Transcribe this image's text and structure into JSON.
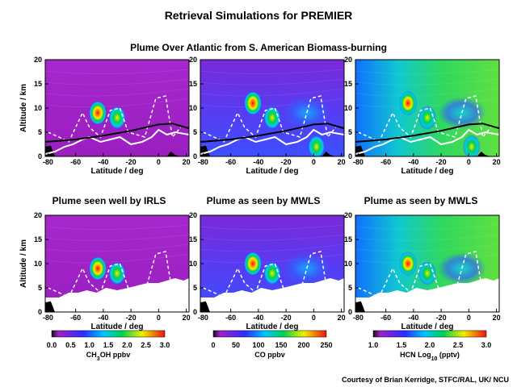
{
  "title": "Retrieval Simulations for PREMIER",
  "subtitle": "Plume Over Atlantic from S. American Biomass-burning",
  "row2_titles": [
    "Plume seen well by IRLS",
    "Plume as seen by MWLS",
    "Plume as seen by MWLS"
  ],
  "credit": "Courtesy of Brian Kerridge, STFC/RAL, UK/ NCU",
  "colors": {
    "background_low": "#a020c8",
    "fill_white": "#ffffff",
    "black": "#000000"
  },
  "chart_data": [
    {
      "type": "heatmap",
      "panel": "top-left",
      "quantity": "CH3OH",
      "xlabel": "Latitude / deg",
      "ylabel": "Altitude / km",
      "xlim": [
        -82,
        22
      ],
      "ylim": [
        0,
        20
      ],
      "xticks": [
        -80,
        -60,
        -40,
        -20,
        0,
        20
      ],
      "yticks": [
        0,
        5,
        10,
        15,
        20
      ],
      "plume_centers": [
        {
          "lat": -44,
          "alt": 9
        },
        {
          "lat": -30,
          "alt": 8
        }
      ],
      "colorbar": "ch3oh"
    },
    {
      "type": "heatmap",
      "panel": "top-middle",
      "quantity": "CO",
      "xlabel": "Latitude / deg",
      "ylabel": "",
      "xlim": [
        -82,
        22
      ],
      "ylim": [
        0,
        20
      ],
      "xticks": [
        -80,
        -60,
        -40,
        -20,
        0,
        20
      ],
      "yticks": [
        0,
        5,
        10,
        15,
        20
      ],
      "plume_centers": [
        {
          "lat": -44,
          "alt": 11
        },
        {
          "lat": -30,
          "alt": 8
        },
        {
          "lat": 2,
          "alt": 2
        }
      ],
      "colorbar": "co"
    },
    {
      "type": "heatmap",
      "panel": "top-right",
      "quantity": "HCN",
      "xlabel": "Latitude / deg",
      "ylabel": "",
      "xlim": [
        -82,
        22
      ],
      "ylim": [
        0,
        20
      ],
      "xticks": [
        -80,
        -60,
        -40,
        -20,
        0,
        20
      ],
      "yticks": [
        0,
        5,
        10,
        15,
        20
      ],
      "plume_centers": [
        {
          "lat": -44,
          "alt": 11
        },
        {
          "lat": -30,
          "alt": 8
        },
        {
          "lat": 2,
          "alt": 2
        }
      ],
      "colorbar": "hcn"
    },
    {
      "type": "heatmap",
      "panel": "bottom-left",
      "quantity": "CH3OH",
      "xlabel": "Latitude / deg",
      "ylabel": "Altitude / km",
      "xlim": [
        -82,
        22
      ],
      "ylim": [
        0,
        20
      ],
      "xticks": [
        -80,
        -60,
        -40,
        -20,
        0,
        20
      ],
      "yticks": [
        0,
        5,
        10,
        15,
        20
      ],
      "plume_centers": [
        {
          "lat": -44,
          "alt": 9
        },
        {
          "lat": -30,
          "alt": 8
        }
      ],
      "colorbar": "ch3oh"
    },
    {
      "type": "heatmap",
      "panel": "bottom-middle",
      "quantity": "CO",
      "xlabel": "Latitude / deg",
      "ylabel": "",
      "xlim": [
        -82,
        22
      ],
      "ylim": [
        0,
        20
      ],
      "xticks": [
        -80,
        -60,
        -40,
        -20,
        0,
        20
      ],
      "yticks": [
        0,
        5,
        10,
        15,
        20
      ],
      "plume_centers": [
        {
          "lat": -44,
          "alt": 10
        },
        {
          "lat": -30,
          "alt": 8
        }
      ],
      "colorbar": "co"
    },
    {
      "type": "heatmap",
      "panel": "bottom-right",
      "quantity": "HCN",
      "xlabel": "Latitude / deg",
      "ylabel": "",
      "xlim": [
        -82,
        22
      ],
      "ylim": [
        0,
        20
      ],
      "xticks": [
        -80,
        -60,
        -40,
        -20,
        0,
        20
      ],
      "yticks": [
        0,
        5,
        10,
        15,
        20
      ],
      "plume_centers": [
        {
          "lat": -44,
          "alt": 10
        },
        {
          "lat": -30,
          "alt": 8
        }
      ],
      "colorbar": "hcn"
    }
  ],
  "colorbars": {
    "ch3oh": {
      "label_pre": "CH",
      "label_sub1": "3",
      "label_post": "OH ppbv",
      "min": 0.0,
      "max": 3.0,
      "ticks": [
        "0.0",
        "0.5",
        "1.0",
        "1.5",
        "2.0",
        "2.5",
        "3.0"
      ]
    },
    "co": {
      "label_pre": "CO ppbv",
      "label_sub1": "",
      "label_post": "",
      "min": 0,
      "max": 250,
      "ticks": [
        "0",
        "50",
        "100",
        "150",
        "200",
        "250"
      ]
    },
    "hcn": {
      "label_pre": "HCN Log",
      "label_sub1": "10",
      "label_post": " (pptv)",
      "min": 1.0,
      "max": 3.0,
      "ticks": [
        "1.0",
        "1.5",
        "2.0",
        "2.5",
        "3.0"
      ]
    }
  }
}
